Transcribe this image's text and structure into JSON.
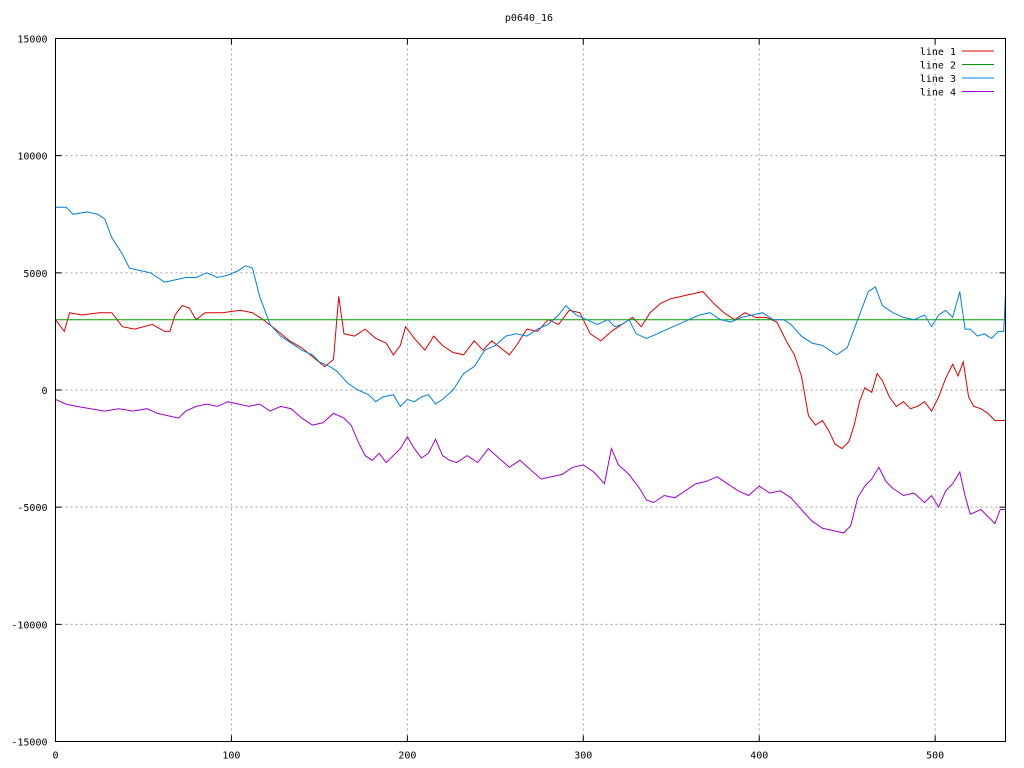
{
  "chart_data": {
    "type": "line",
    "title": "p0640_16",
    "xlim": [
      0,
      540
    ],
    "ylim": [
      -15000,
      15000
    ],
    "xticks": [
      0,
      100,
      200,
      300,
      400,
      500
    ],
    "yticks": [
      -15000,
      -10000,
      -5000,
      0,
      5000,
      10000,
      15000
    ],
    "grid": true,
    "legend_position": "top-right",
    "series": [
      {
        "name": "line 1",
        "color": "#e00000",
        "points": [
          [
            0,
            3000
          ],
          [
            5,
            2500
          ],
          [
            8,
            3300
          ],
          [
            15,
            3200
          ],
          [
            25,
            3300
          ],
          [
            32,
            3300
          ],
          [
            38,
            2700
          ],
          [
            45,
            2600
          ],
          [
            55,
            2800
          ],
          [
            62,
            2500
          ],
          [
            65,
            2500
          ],
          [
            68,
            3200
          ],
          [
            72,
            3600
          ],
          [
            76,
            3500
          ],
          [
            80,
            3000
          ],
          [
            85,
            3300
          ],
          [
            95,
            3300
          ],
          [
            105,
            3400
          ],
          [
            112,
            3300
          ],
          [
            118,
            3000
          ],
          [
            125,
            2600
          ],
          [
            133,
            2100
          ],
          [
            140,
            1800
          ],
          [
            148,
            1300
          ],
          [
            153,
            1000
          ],
          [
            158,
            1300
          ],
          [
            161,
            4000
          ],
          [
            164,
            2400
          ],
          [
            170,
            2300
          ],
          [
            176,
            2600
          ],
          [
            182,
            2200
          ],
          [
            188,
            2000
          ],
          [
            192,
            1500
          ],
          [
            196,
            1900
          ],
          [
            199,
            2700
          ],
          [
            204,
            2200
          ],
          [
            210,
            1700
          ],
          [
            215,
            2300
          ],
          [
            220,
            1900
          ],
          [
            226,
            1600
          ],
          [
            232,
            1500
          ],
          [
            238,
            2100
          ],
          [
            243,
            1700
          ],
          [
            248,
            2100
          ],
          [
            253,
            1800
          ],
          [
            258,
            1500
          ],
          [
            262,
            1900
          ],
          [
            268,
            2600
          ],
          [
            274,
            2500
          ],
          [
            280,
            3000
          ],
          [
            286,
            2800
          ],
          [
            292,
            3400
          ],
          [
            298,
            3300
          ],
          [
            304,
            2400
          ],
          [
            310,
            2100
          ],
          [
            316,
            2500
          ],
          [
            322,
            2800
          ],
          [
            328,
            3100
          ],
          [
            333,
            2700
          ],
          [
            338,
            3300
          ],
          [
            344,
            3700
          ],
          [
            350,
            3900
          ],
          [
            356,
            4000
          ],
          [
            362,
            4100
          ],
          [
            368,
            4200
          ],
          [
            374,
            3700
          ],
          [
            380,
            3300
          ],
          [
            386,
            3000
          ],
          [
            392,
            3300
          ],
          [
            398,
            3100
          ],
          [
            404,
            3100
          ],
          [
            410,
            2900
          ],
          [
            416,
            2000
          ],
          [
            420,
            1500
          ],
          [
            424,
            600
          ],
          [
            428,
            -1100
          ],
          [
            432,
            -1500
          ],
          [
            436,
            -1300
          ],
          [
            440,
            -1800
          ],
          [
            443,
            -2300
          ],
          [
            447,
            -2500
          ],
          [
            451,
            -2200
          ],
          [
            454,
            -1500
          ],
          [
            457,
            -500
          ],
          [
            460,
            100
          ],
          [
            464,
            -100
          ],
          [
            467,
            700
          ],
          [
            470,
            400
          ],
          [
            474,
            -300
          ],
          [
            478,
            -700
          ],
          [
            482,
            -500
          ],
          [
            486,
            -800
          ],
          [
            490,
            -700
          ],
          [
            494,
            -500
          ],
          [
            498,
            -900
          ],
          [
            502,
            -300
          ],
          [
            506,
            500
          ],
          [
            510,
            1100
          ],
          [
            513,
            600
          ],
          [
            516,
            1200
          ],
          [
            519,
            -300
          ],
          [
            522,
            -700
          ],
          [
            526,
            -800
          ],
          [
            530,
            -1000
          ],
          [
            534,
            -1300
          ],
          [
            540,
            -1300
          ]
        ]
      },
      {
        "name": "line 2",
        "color": "#00a000",
        "points": [
          [
            0,
            3000
          ],
          [
            540,
            3000
          ]
        ]
      },
      {
        "name": "line 3",
        "color": "#0080e0",
        "points": [
          [
            0,
            7800
          ],
          [
            6,
            7800
          ],
          [
            10,
            7500
          ],
          [
            18,
            7600
          ],
          [
            24,
            7500
          ],
          [
            28,
            7300
          ],
          [
            32,
            6500
          ],
          [
            38,
            5800
          ],
          [
            42,
            5200
          ],
          [
            48,
            5100
          ],
          [
            54,
            5000
          ],
          [
            58,
            4800
          ],
          [
            62,
            4600
          ],
          [
            68,
            4700
          ],
          [
            74,
            4800
          ],
          [
            80,
            4800
          ],
          [
            86,
            5000
          ],
          [
            92,
            4800
          ],
          [
            98,
            4900
          ],
          [
            104,
            5100
          ],
          [
            108,
            5300
          ],
          [
            112,
            5200
          ],
          [
            116,
            4000
          ],
          [
            122,
            2800
          ],
          [
            128,
            2300
          ],
          [
            134,
            2000
          ],
          [
            140,
            1700
          ],
          [
            146,
            1500
          ],
          [
            150,
            1200
          ],
          [
            156,
            1000
          ],
          [
            160,
            800
          ],
          [
            166,
            300
          ],
          [
            172,
            0
          ],
          [
            178,
            -200
          ],
          [
            182,
            -500
          ],
          [
            186,
            -300
          ],
          [
            192,
            -200
          ],
          [
            196,
            -700
          ],
          [
            200,
            -400
          ],
          [
            204,
            -500
          ],
          [
            208,
            -300
          ],
          [
            212,
            -200
          ],
          [
            216,
            -600
          ],
          [
            220,
            -400
          ],
          [
            226,
            0
          ],
          [
            232,
            700
          ],
          [
            238,
            1000
          ],
          [
            244,
            1700
          ],
          [
            250,
            1900
          ],
          [
            256,
            2300
          ],
          [
            262,
            2400
          ],
          [
            268,
            2300
          ],
          [
            274,
            2600
          ],
          [
            280,
            2800
          ],
          [
            286,
            3200
          ],
          [
            290,
            3600
          ],
          [
            296,
            3200
          ],
          [
            302,
            3000
          ],
          [
            308,
            2800
          ],
          [
            314,
            3000
          ],
          [
            318,
            2700
          ],
          [
            322,
            2800
          ],
          [
            326,
            3000
          ],
          [
            330,
            2400
          ],
          [
            336,
            2200
          ],
          [
            342,
            2400
          ],
          [
            348,
            2600
          ],
          [
            354,
            2800
          ],
          [
            360,
            3000
          ],
          [
            366,
            3200
          ],
          [
            372,
            3300
          ],
          [
            378,
            3000
          ],
          [
            384,
            2900
          ],
          [
            390,
            3100
          ],
          [
            396,
            3200
          ],
          [
            402,
            3300
          ],
          [
            408,
            3000
          ],
          [
            414,
            3000
          ],
          [
            418,
            2800
          ],
          [
            424,
            2300
          ],
          [
            430,
            2000
          ],
          [
            436,
            1900
          ],
          [
            444,
            1500
          ],
          [
            450,
            1800
          ],
          [
            456,
            3000
          ],
          [
            462,
            4200
          ],
          [
            466,
            4400
          ],
          [
            470,
            3600
          ],
          [
            476,
            3300
          ],
          [
            482,
            3100
          ],
          [
            488,
            3000
          ],
          [
            494,
            3200
          ],
          [
            498,
            2700
          ],
          [
            502,
            3200
          ],
          [
            506,
            3400
          ],
          [
            510,
            3100
          ],
          [
            514,
            4200
          ],
          [
            517,
            2600
          ],
          [
            520,
            2600
          ],
          [
            524,
            2300
          ],
          [
            528,
            2400
          ],
          [
            532,
            2200
          ],
          [
            536,
            2500
          ],
          [
            539,
            2500
          ],
          [
            540,
            4100
          ]
        ]
      },
      {
        "name": "line 4",
        "color": "#a000d0",
        "points": [
          [
            0,
            -400
          ],
          [
            6,
            -600
          ],
          [
            12,
            -700
          ],
          [
            20,
            -800
          ],
          [
            28,
            -900
          ],
          [
            36,
            -800
          ],
          [
            44,
            -900
          ],
          [
            52,
            -800
          ],
          [
            58,
            -1000
          ],
          [
            64,
            -1100
          ],
          [
            70,
            -1200
          ],
          [
            74,
            -900
          ],
          [
            80,
            -700
          ],
          [
            86,
            -600
          ],
          [
            92,
            -700
          ],
          [
            98,
            -500
          ],
          [
            104,
            -600
          ],
          [
            110,
            -700
          ],
          [
            116,
            -600
          ],
          [
            122,
            -900
          ],
          [
            128,
            -700
          ],
          [
            134,
            -800
          ],
          [
            140,
            -1200
          ],
          [
            146,
            -1500
          ],
          [
            152,
            -1400
          ],
          [
            158,
            -1000
          ],
          [
            164,
            -1200
          ],
          [
            168,
            -1500
          ],
          [
            172,
            -2200
          ],
          [
            176,
            -2800
          ],
          [
            180,
            -3000
          ],
          [
            184,
            -2700
          ],
          [
            188,
            -3100
          ],
          [
            192,
            -2800
          ],
          [
            196,
            -2500
          ],
          [
            200,
            -2000
          ],
          [
            204,
            -2500
          ],
          [
            208,
            -2900
          ],
          [
            212,
            -2700
          ],
          [
            216,
            -2100
          ],
          [
            220,
            -2800
          ],
          [
            224,
            -3000
          ],
          [
            228,
            -3100
          ],
          [
            234,
            -2800
          ],
          [
            240,
            -3100
          ],
          [
            246,
            -2500
          ],
          [
            252,
            -2900
          ],
          [
            258,
            -3300
          ],
          [
            264,
            -3000
          ],
          [
            270,
            -3400
          ],
          [
            276,
            -3800
          ],
          [
            282,
            -3700
          ],
          [
            288,
            -3600
          ],
          [
            294,
            -3300
          ],
          [
            300,
            -3200
          ],
          [
            306,
            -3500
          ],
          [
            312,
            -4000
          ],
          [
            316,
            -2500
          ],
          [
            320,
            -3200
          ],
          [
            326,
            -3600
          ],
          [
            332,
            -4200
          ],
          [
            336,
            -4700
          ],
          [
            340,
            -4800
          ],
          [
            346,
            -4500
          ],
          [
            352,
            -4600
          ],
          [
            358,
            -4300
          ],
          [
            364,
            -4000
          ],
          [
            370,
            -3900
          ],
          [
            376,
            -3700
          ],
          [
            382,
            -4000
          ],
          [
            388,
            -4300
          ],
          [
            394,
            -4500
          ],
          [
            400,
            -4100
          ],
          [
            406,
            -4400
          ],
          [
            412,
            -4300
          ],
          [
            418,
            -4600
          ],
          [
            424,
            -5100
          ],
          [
            430,
            -5600
          ],
          [
            436,
            -5900
          ],
          [
            442,
            -6000
          ],
          [
            448,
            -6100
          ],
          [
            452,
            -5800
          ],
          [
            456,
            -4600
          ],
          [
            460,
            -4100
          ],
          [
            464,
            -3800
          ],
          [
            468,
            -3300
          ],
          [
            472,
            -3900
          ],
          [
            476,
            -4200
          ],
          [
            482,
            -4500
          ],
          [
            488,
            -4400
          ],
          [
            494,
            -4800
          ],
          [
            498,
            -4500
          ],
          [
            502,
            -5000
          ],
          [
            506,
            -4300
          ],
          [
            510,
            -4000
          ],
          [
            514,
            -3500
          ],
          [
            517,
            -4500
          ],
          [
            520,
            -5300
          ],
          [
            526,
            -5100
          ],
          [
            530,
            -5400
          ],
          [
            534,
            -5700
          ],
          [
            537,
            -5100
          ],
          [
            540,
            -5100
          ]
        ]
      }
    ]
  }
}
